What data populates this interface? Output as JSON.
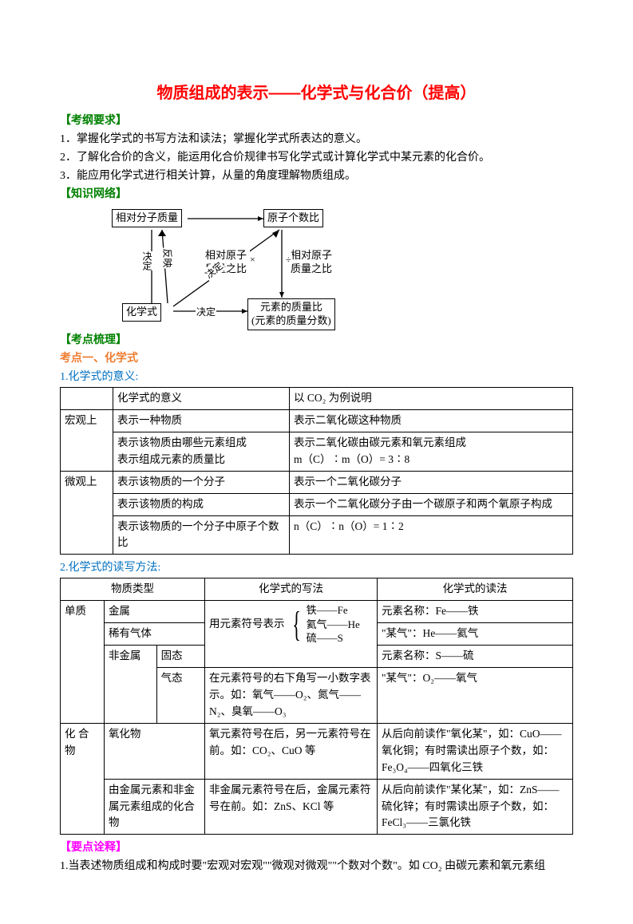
{
  "title": "物质组成的表示——化学式与化合价（提高）",
  "headings": {
    "outline": "【考纲要求】",
    "network": "【知识网络】",
    "comb": "【考点梳理】",
    "point1": " 考点一、化学式",
    "sub1": "1.化学式的意义:",
    "sub2": "2.化学式的读写方法:",
    "interpret": "【要点诠释】"
  },
  "outline": {
    "l1": "1．掌握化学式的书写方法和读法；掌握化学式所表达的意义。",
    "l2": "2．了解化合价的含义，能运用化合价规律书写化学式或计算化学式中某元素的化合价。",
    "l3": "3．能应用化学式进行相关计算，从量的角度理解物质组成。"
  },
  "diagram": {
    "box1": "相对分子质量",
    "box2": "原子个数比",
    "box3": "相对原子\n质量之比",
    "box4": "相对原子\n质量之比",
    "box5": "化学式",
    "box6": "元素的质量比\n(元素的质量分数)",
    "lbl_decide": "决定",
    "lbl_reflect": "反映",
    "lbl_mul": "×",
    "lbl_div": "÷"
  },
  "t1": {
    "h1": "化学式的意义",
    "h2": "以 CO₂ 为例说明",
    "macro": "宏观上",
    "micro": "微观上",
    "r1c1": "表示一种物质",
    "r1c2": "表示二氧化碳这种物质",
    "r2c1a": "表示该物质由哪些元素组成",
    "r2c1b": "表示组成元素的质量比",
    "r2c2a": "表示二氧化碳由碳元素和氧元素组成",
    "r2c2b": "m（C）∶m（O）= 3∶8",
    "r3c1": "表示该物质的一个分子",
    "r3c2": "表示一个二氧化碳分子",
    "r4c1": "表示该物质的构成",
    "r4c2": "表示一个二氧化碳分子由一个碳原子和两个氧原子构成",
    "r5c1": "表示该物质的一个分子中原子个数比",
    "r5c2": "n（C）∶n（O）= 1∶2"
  },
  "t2": {
    "h1": "物质类型",
    "h2": "化学式的写法",
    "h3": "化学式的读法",
    "danzhi": "单质",
    "jinshu": "金属",
    "xiyou": "稀有气体",
    "feijin": "非金属",
    "gutai": "固态",
    "qitai": "气态",
    "hehe": "化 合 物",
    "yanghua": "氧化物",
    "write_symbol": "用元素符号表示",
    "brace1": "铁——Fe",
    "brace2": "氦气——He",
    "brace3": "硫——S",
    "read_fe": "元素名称：Fe——铁",
    "read_he": "\"某气\"：He——氦气",
    "read_s": "元素名称：S——硫",
    "write_gas": "在元素符号的右下角写一小数字表示。如：氧气——O₂、氮气——N₂、臭氧——O₃",
    "read_gas": "\"某气\"：O₂——氧气",
    "write_ox": "氧元素符号在后，另一元素符号在前。如：CO₂、CuO 等",
    "read_ox": "从后向前读作\"氧化某\"，如：CuO——氧化铜；有时需读出原子个数，如：Fe₃O₄——四氧化三铁",
    "by_metal": "由金属元素和非金属元素组成的化合物",
    "write_metal": "非金属元素符号在后，金属元素符号在前。如：ZnS、KCl 等",
    "read_metal": "从后向前读作\"某化某\"，如：ZnS——硫化锌；有时需读出原子个数，如：FeCl₃——三氯化铁"
  },
  "notes": {
    "n1": "1.当表述物质组成和构成时要\"宏观对宏观\"\"微观对微观\"\"个数对个数\"。如 CO₂ 由碳元素和氧元素组"
  }
}
